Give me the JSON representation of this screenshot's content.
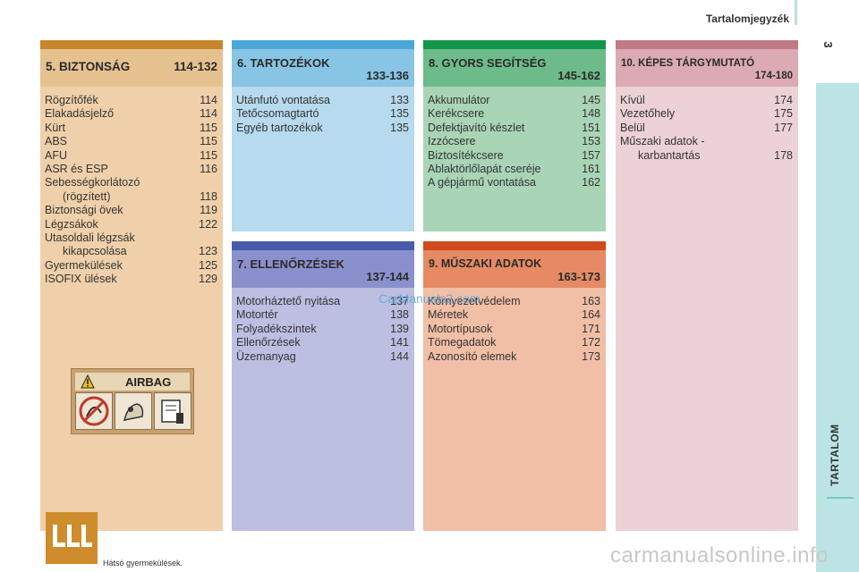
{
  "header": {
    "title": "Tartalomjegyzék",
    "page_number": "3"
  },
  "sidebar": {
    "label": "TARTALOM"
  },
  "sections": {
    "s5": {
      "title": "5. BIZTONSÁG",
      "range": "114-132",
      "entries": [
        {
          "label": "Rögzítőfék",
          "page": "114"
        },
        {
          "label": "Elakadásjelző",
          "page": "114"
        },
        {
          "label": "Kürt",
          "page": "115"
        },
        {
          "label": "ABS",
          "page": "115"
        },
        {
          "label": "AFU",
          "page": "115"
        },
        {
          "label": "ASR és ESP",
          "page": "116"
        },
        {
          "label": "Sebességkorlátozó",
          "page": ""
        },
        {
          "label": "(rögzített)",
          "page": "118"
        },
        {
          "label": "Biztonsági övek",
          "page": "119"
        },
        {
          "label": "Légzsákok",
          "page": "122"
        },
        {
          "label": "Utasoldali légzsák",
          "page": ""
        },
        {
          "label": "kikapcsolása",
          "page": "123"
        },
        {
          "label": "Gyermekülések",
          "page": "125"
        },
        {
          "label": "ISOFIX ülések",
          "page": "129"
        }
      ],
      "airbag_label": "AIRBAG",
      "seats_caption": "Hátsó gyermekülések."
    },
    "s6": {
      "title": "6. TARTOZÉKOK",
      "range": "133-136",
      "entries": [
        {
          "label": "Utánfutó vontatása",
          "page": "133"
        },
        {
          "label": "Tetőcsomagtartó",
          "page": "135"
        },
        {
          "label": "Egyéb tartozékok",
          "page": "135"
        }
      ]
    },
    "s8": {
      "title": "8. GYORS SEGÍTSÉG",
      "range": "145-162",
      "entries": [
        {
          "label": "Akkumulátor",
          "page": "145"
        },
        {
          "label": "Kerékcsere",
          "page": "148"
        },
        {
          "label": "Defektjavító készlet",
          "page": "151"
        },
        {
          "label": "Izzócsere",
          "page": "153"
        },
        {
          "label": "Biztosítékcsere",
          "page": "157"
        },
        {
          "label": "Ablaktörlőlapát cseréje",
          "page": "161"
        },
        {
          "label": "A gépjármű vontatása",
          "page": "162"
        }
      ]
    },
    "s10": {
      "title": "10. KÉPES TÁRGYMUTATÓ",
      "range": "174-180",
      "entries": [
        {
          "label": "Kívül",
          "page": "174"
        },
        {
          "label": "Vezetőhely",
          "page": "175"
        },
        {
          "label": "Belül",
          "page": "177"
        },
        {
          "label": "Műszaki adatok -",
          "page": ""
        },
        {
          "label": "karbantartás",
          "page": "178"
        }
      ]
    },
    "s7": {
      "title": "7. ELLENŐRZÉSEK",
      "range": "137-144",
      "entries": [
        {
          "label": "Motorháztető nyitása",
          "page": "137"
        },
        {
          "label": "Motortér",
          "page": "138"
        },
        {
          "label": "Folyadékszintek",
          "page": "139"
        },
        {
          "label": "Ellenőrzések",
          "page": "141"
        },
        {
          "label": "Üzemanyag",
          "page": "144"
        }
      ]
    },
    "s9": {
      "title": "9. MŰSZAKI ADATOK",
      "range": "163-173",
      "entries": [
        {
          "label": "Környezetvédelem",
          "page": "163"
        },
        {
          "label": "Méretek",
          "page": "164"
        },
        {
          "label": "Motortípusok",
          "page": "171"
        },
        {
          "label": "Tömegadatok",
          "page": "172"
        },
        {
          "label": "Azonosító elemek",
          "page": "173"
        }
      ]
    }
  },
  "watermarks": {
    "blue": "CarManuals2.com",
    "grey": "carmanualsonline.info"
  }
}
